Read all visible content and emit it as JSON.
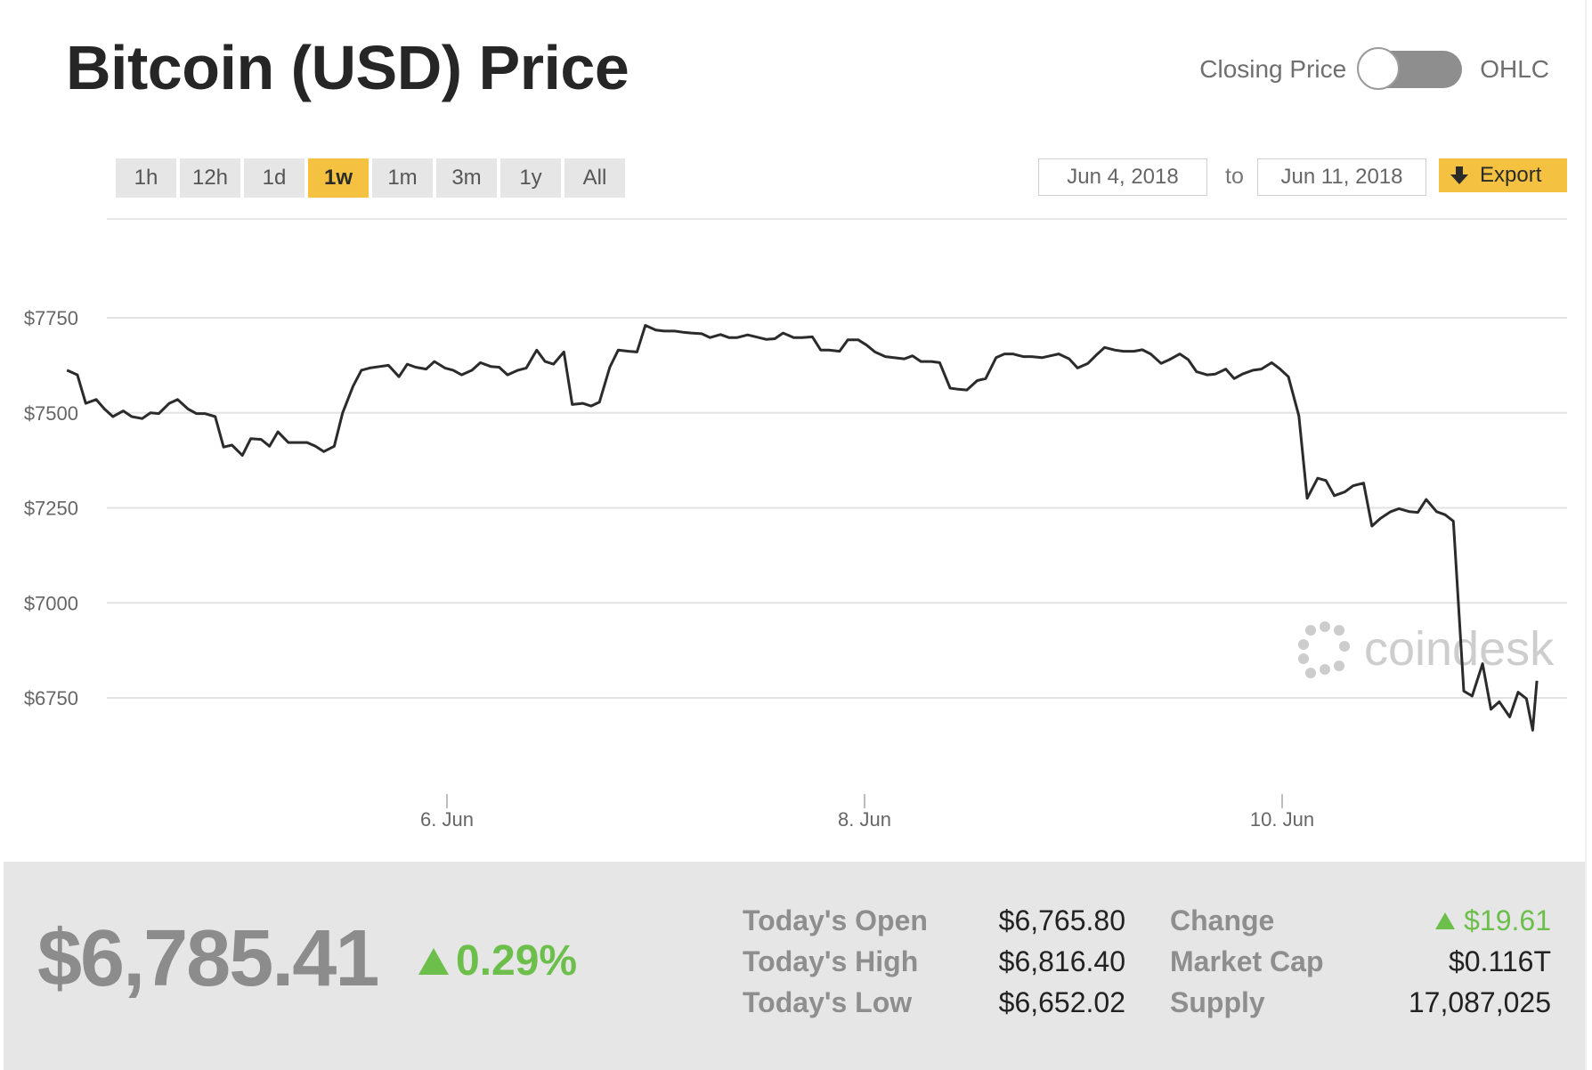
{
  "header": {
    "title": "Bitcoin (USD) Price",
    "toggle_left": "Closing Price",
    "toggle_right": "OHLC"
  },
  "ranges": [
    "1h",
    "12h",
    "1d",
    "1w",
    "1m",
    "3m",
    "1y",
    "All"
  ],
  "active_range": "1w",
  "date_from": "Jun 4, 2018",
  "date_to_label": "to",
  "date_to": "Jun 11, 2018",
  "export_label": "Export",
  "watermark": "coindesk",
  "colors": {
    "accent": "#f4c240",
    "positive": "#6dbf4b",
    "line": "#2b2b2b"
  },
  "stats": {
    "price": "$6,785.41",
    "change_pct": "0.29%",
    "rows": [
      {
        "label": "Today's Open",
        "value": "$6,765.80"
      },
      {
        "label": "Today's High",
        "value": "$6,816.40"
      },
      {
        "label": "Today's Low",
        "value": "$6,652.02"
      }
    ],
    "rows2": [
      {
        "label": "Change",
        "value": "$19.61",
        "positive": true
      },
      {
        "label": "Market Cap",
        "value": "$0.116T"
      },
      {
        "label": "Supply",
        "value": "17,087,025"
      }
    ]
  },
  "chart_data": {
    "type": "line",
    "title": "",
    "xlabel": "",
    "ylabel": "",
    "ylim": [
      6600,
      7850
    ],
    "x_range_days": [
      4.18,
      11.2
    ],
    "yticks": [
      {
        "value": 7750,
        "label": "$7750"
      },
      {
        "value": 7500,
        "label": "$7500"
      },
      {
        "value": 7250,
        "label": "$7250"
      },
      {
        "value": 7000,
        "label": "$7000"
      },
      {
        "value": 6750,
        "label": "$6750"
      }
    ],
    "xticks": [
      {
        "day": 6,
        "label": "6. Jun"
      },
      {
        "day": 8,
        "label": "8. Jun"
      },
      {
        "day": 10,
        "label": "10. Jun"
      }
    ],
    "series": [
      {
        "points": [
          [
            4.18,
            7612
          ],
          [
            4.23,
            7600
          ],
          [
            4.27,
            7525
          ],
          [
            4.32,
            7535
          ],
          [
            4.36,
            7510
          ],
          [
            4.4,
            7490
          ],
          [
            4.45,
            7505
          ],
          [
            4.49,
            7490
          ],
          [
            4.54,
            7485
          ],
          [
            4.58,
            7500
          ],
          [
            4.62,
            7498
          ],
          [
            4.67,
            7525
          ],
          [
            4.71,
            7535
          ],
          [
            4.76,
            7510
          ],
          [
            4.8,
            7498
          ],
          [
            4.84,
            7498
          ],
          [
            4.89,
            7490
          ],
          [
            4.93,
            7410
          ],
          [
            4.97,
            7415
          ],
          [
            5.02,
            7388
          ],
          [
            5.06,
            7432
          ],
          [
            5.11,
            7430
          ],
          [
            5.15,
            7412
          ],
          [
            5.19,
            7450
          ],
          [
            5.24,
            7422
          ],
          [
            5.28,
            7422
          ],
          [
            5.33,
            7422
          ],
          [
            5.37,
            7412
          ],
          [
            5.41,
            7398
          ],
          [
            5.46,
            7412
          ],
          [
            5.5,
            7500
          ],
          [
            5.55,
            7570
          ],
          [
            5.59,
            7612
          ],
          [
            5.63,
            7618
          ],
          [
            5.68,
            7622
          ],
          [
            5.72,
            7625
          ],
          [
            5.77,
            7595
          ],
          [
            5.81,
            7628
          ],
          [
            5.85,
            7620
          ],
          [
            5.9,
            7615
          ],
          [
            5.94,
            7635
          ],
          [
            5.99,
            7618
          ],
          [
            6.03,
            7612
          ],
          [
            6.07,
            7600
          ],
          [
            6.12,
            7612
          ],
          [
            6.16,
            7632
          ],
          [
            6.21,
            7622
          ],
          [
            6.25,
            7620
          ],
          [
            6.29,
            7600
          ],
          [
            6.34,
            7612
          ],
          [
            6.38,
            7618
          ],
          [
            6.43,
            7665
          ],
          [
            6.47,
            7635
          ],
          [
            6.51,
            7628
          ],
          [
            6.56,
            7660
          ],
          [
            6.6,
            7522
          ],
          [
            6.65,
            7525
          ],
          [
            6.69,
            7518
          ],
          [
            6.73,
            7528
          ],
          [
            6.78,
            7620
          ],
          [
            6.82,
            7665
          ],
          [
            6.87,
            7662
          ],
          [
            6.91,
            7660
          ],
          [
            6.95,
            7730
          ],
          [
            7.0,
            7718
          ],
          [
            7.04,
            7715
          ],
          [
            7.09,
            7715
          ],
          [
            7.13,
            7712
          ],
          [
            7.17,
            7710
          ],
          [
            7.22,
            7708
          ],
          [
            7.26,
            7698
          ],
          [
            7.31,
            7706
          ],
          [
            7.35,
            7698
          ],
          [
            7.39,
            7698
          ],
          [
            7.44,
            7705
          ],
          [
            7.48,
            7700
          ],
          [
            7.53,
            7693
          ],
          [
            7.57,
            7695
          ],
          [
            7.61,
            7710
          ],
          [
            7.66,
            7698
          ],
          [
            7.7,
            7698
          ],
          [
            7.75,
            7700
          ],
          [
            7.79,
            7665
          ],
          [
            7.83,
            7665
          ],
          [
            7.88,
            7662
          ],
          [
            7.92,
            7692
          ],
          [
            7.97,
            7692
          ],
          [
            8.01,
            7678
          ],
          [
            8.05,
            7660
          ],
          [
            8.1,
            7648
          ],
          [
            8.14,
            7645
          ],
          [
            8.19,
            7642
          ],
          [
            8.23,
            7650
          ],
          [
            8.27,
            7635
          ],
          [
            8.32,
            7635
          ],
          [
            8.36,
            7632
          ],
          [
            8.41,
            7565
          ],
          [
            8.45,
            7562
          ],
          [
            8.49,
            7560
          ],
          [
            8.54,
            7585
          ],
          [
            8.58,
            7590
          ],
          [
            8.63,
            7645
          ],
          [
            8.67,
            7655
          ],
          [
            8.71,
            7655
          ],
          [
            8.76,
            7648
          ],
          [
            8.8,
            7648
          ],
          [
            8.85,
            7645
          ],
          [
            8.89,
            7650
          ],
          [
            8.93,
            7655
          ],
          [
            8.98,
            7642
          ],
          [
            9.02,
            7618
          ],
          [
            9.07,
            7630
          ],
          [
            9.11,
            7652
          ],
          [
            9.15,
            7672
          ],
          [
            9.2,
            7665
          ],
          [
            9.24,
            7662
          ],
          [
            9.29,
            7662
          ],
          [
            9.33,
            7666
          ],
          [
            9.37,
            7655
          ],
          [
            9.42,
            7630
          ],
          [
            9.46,
            7640
          ],
          [
            9.51,
            7655
          ],
          [
            9.55,
            7640
          ],
          [
            9.59,
            7608
          ],
          [
            9.64,
            7600
          ],
          [
            9.68,
            7602
          ],
          [
            9.73,
            7615
          ],
          [
            9.77,
            7590
          ],
          [
            9.81,
            7602
          ],
          [
            9.86,
            7612
          ],
          [
            9.9,
            7615
          ],
          [
            9.95,
            7632
          ],
          [
            9.99,
            7615
          ],
          [
            10.03,
            7595
          ],
          [
            10.08,
            7492
          ],
          [
            10.12,
            7275
          ],
          [
            10.17,
            7328
          ],
          [
            10.21,
            7322
          ],
          [
            10.25,
            7282
          ],
          [
            10.3,
            7292
          ],
          [
            10.34,
            7308
          ],
          [
            10.39,
            7315
          ],
          [
            10.43,
            7202
          ],
          [
            10.47,
            7222
          ],
          [
            10.52,
            7240
          ],
          [
            10.56,
            7248
          ],
          [
            10.61,
            7240
          ],
          [
            10.65,
            7238
          ],
          [
            10.69,
            7272
          ],
          [
            10.74,
            7240
          ],
          [
            10.78,
            7232
          ],
          [
            10.82,
            7215
          ],
          [
            10.87,
            6768
          ],
          [
            10.91,
            6755
          ],
          [
            10.96,
            6840
          ],
          [
            11.0,
            6720
          ],
          [
            11.04,
            6740
          ],
          [
            11.09,
            6700
          ],
          [
            11.13,
            6765
          ],
          [
            11.17,
            6748
          ],
          [
            11.2,
            6665
          ],
          [
            11.22,
            6795
          ]
        ]
      }
    ]
  }
}
